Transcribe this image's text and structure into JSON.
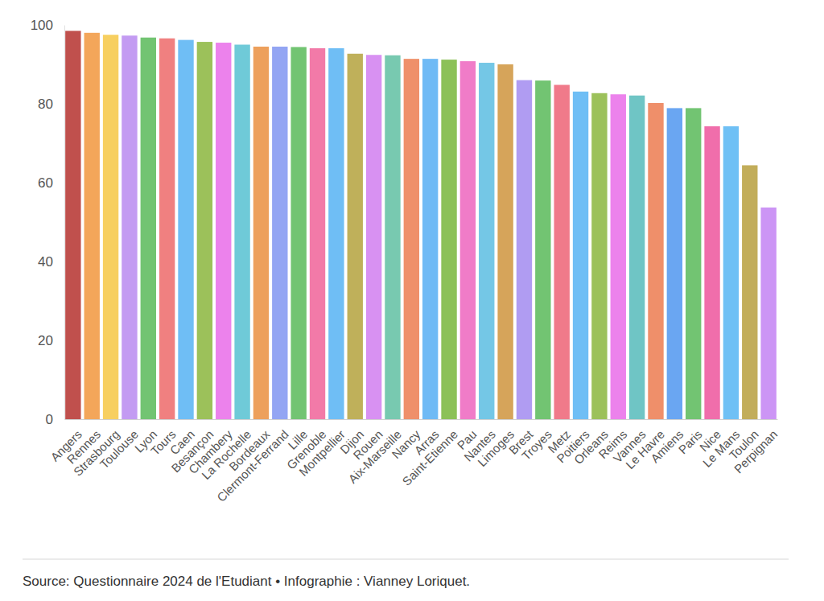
{
  "chart_data": {
    "type": "bar",
    "categories": [
      "Angers",
      "Rennes",
      "Strasbourg",
      "Toulouse",
      "Lyon",
      "Tours",
      "Caen",
      "Besançon",
      "Chambery",
      "La Rochelle",
      "Bordeaux",
      "Clermont-Ferrand",
      "Lille",
      "Grenoble",
      "Montpellier",
      "Dijon",
      "Rouen",
      "Aix-Marseille",
      "Nancy",
      "Arras",
      "Saint-Etienne",
      "Pau",
      "Nantes",
      "Limoges",
      "Brest",
      "Troyes",
      "Metz",
      "Poitiers",
      "Orleans",
      "Reims",
      "Vannes",
      "Le Havre",
      "Amiens",
      "Paris",
      "Nice",
      "Le Mans",
      "Toulon",
      "Perpignan"
    ],
    "values": [
      98.5,
      98,
      97.5,
      97.3,
      96.8,
      96.6,
      96.2,
      95.7,
      95.5,
      95.0,
      94.5,
      94.5,
      94.4,
      94.1,
      94.1,
      92.7,
      92.4,
      92.3,
      91.4,
      91.4,
      91.2,
      90.8,
      90.4,
      90.0,
      86.0,
      85.9,
      84.8,
      83.1,
      82.7,
      82.4,
      82.1,
      80.2,
      78.9,
      78.9,
      74.3,
      74.3,
      64.4,
      53.7
    ],
    "colors": [
      "#c0504d",
      "#f3a65a",
      "#f7cf60",
      "#c39bf2",
      "#72c472",
      "#f08080",
      "#6fbef5",
      "#9cc15a",
      "#ec82ec",
      "#6fcad8",
      "#eda05c",
      "#93a5f3",
      "#72c472",
      "#f27aa8",
      "#6fbef5",
      "#bfb05a",
      "#d891f2",
      "#78c9b0",
      "#ef906a",
      "#6fbaf5",
      "#8cc158",
      "#f07cc8",
      "#74c7e6",
      "#d6a45a",
      "#b09cf2",
      "#72c472",
      "#f07a8a",
      "#6fbef5",
      "#9cc15a",
      "#ec82ec",
      "#6fc5c5",
      "#ef8f6a",
      "#6aa6f2",
      "#72c472",
      "#f06eab",
      "#6fc0f5",
      "#c2ad5a",
      "#cc95f5"
    ],
    "ylim": [
      0,
      100
    ],
    "yticks": [
      0,
      20,
      40,
      60,
      80,
      100
    ],
    "grid": false,
    "source": "Source: Questionnaire 2024 de l'Etudiant • Infographie : Vianney Loriquet."
  }
}
